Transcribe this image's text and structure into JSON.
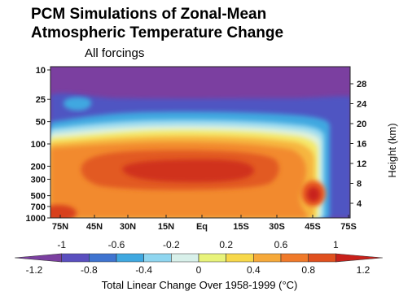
{
  "chart_data": {
    "type": "heatmap",
    "title": "PCM Simulations of Zonal-Mean\nAtmospheric Temperature Change",
    "subtitle": "All forcings",
    "x_tick_labels": [
      "75N",
      "45N",
      "30N",
      "15N",
      "Eq",
      "15S",
      "30S",
      "45S",
      "75S"
    ],
    "y_left_label": "",
    "y_left_ticks": [
      "10",
      "25",
      "50",
      "100",
      "200",
      "300",
      "500",
      "700",
      "1000"
    ],
    "y_left_values_hPa": [
      10,
      25,
      50,
      100,
      200,
      300,
      500,
      700,
      1000
    ],
    "y_right_label": "Height (km)",
    "y_right_ticks": [
      "28",
      "24",
      "20",
      "16",
      "12",
      "8",
      "4"
    ],
    "colorbar": {
      "label": "Total Linear Change Over 1958-1999 (°C)",
      "levels": [
        -1.2,
        -1,
        -0.8,
        -0.6,
        -0.4,
        -0.2,
        0,
        0.2,
        0.4,
        0.6,
        0.8,
        1,
        1.2
      ],
      "upper_tick_labels": [
        "-1",
        "-0.6",
        "-0.2",
        "0.2",
        "0.6",
        "1"
      ],
      "lower_tick_labels": [
        "-1.2",
        "-0.8",
        "-0.4",
        "0",
        "0.4",
        "0.8",
        "1.2"
      ],
      "colors": [
        "#7b3fa0",
        "#5a4fbf",
        "#3f74d0",
        "#3fa8e0",
        "#8fd6f0",
        "#d8f0ea",
        "#e8f37a",
        "#f7d84a",
        "#f6a93a",
        "#f07a2a",
        "#e0501e",
        "#c8201a"
      ]
    },
    "features": {
      "background": "purple cooling in stratosphere (about -1 °C)",
      "strongest_cooling": "blue pocket near 25 hPa around 45N-60N",
      "warming_core": "red maximum near 200-300 hPa over 30N-30S (about +1 °C)",
      "secondary_maximum": "red spot near 500 hPa at about 45S"
    }
  }
}
